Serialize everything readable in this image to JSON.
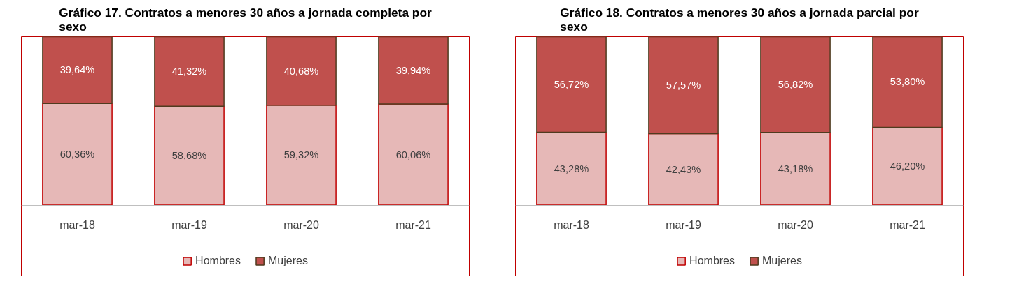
{
  "chart_data": [
    {
      "type": "bar",
      "title": "Gráfico 17. Contratos a menores 30 años a jornada completa por sexo",
      "categories": [
        "mar-18",
        "mar-19",
        "mar-20",
        "mar-21"
      ],
      "stacked": true,
      "legend": "bottom",
      "grid": false,
      "series": [
        {
          "name": "Hombres",
          "color": "#e6b8b7",
          "values": [
            60.36,
            58.68,
            59.32,
            60.06
          ],
          "value_labels": [
            "60,36%",
            "58,68%",
            "59,32%",
            "60,06%"
          ]
        },
        {
          "name": "Mujeres",
          "color": "#c0504d",
          "values": [
            39.64,
            41.32,
            40.68,
            39.94
          ],
          "value_labels": [
            "39,64%",
            "41,32%",
            "40,68%",
            "39,94%"
          ]
        }
      ]
    },
    {
      "type": "bar",
      "title": "Gráfico 18. Contratos a menores 30 años a jornada parcial por sexo",
      "categories": [
        "mar-18",
        "mar-19",
        "mar-20",
        "mar-21"
      ],
      "stacked": true,
      "legend": "bottom",
      "grid": false,
      "series": [
        {
          "name": "Hombres",
          "color": "#e6b8b7",
          "values": [
            43.28,
            42.43,
            43.18,
            46.2
          ],
          "value_labels": [
            "43,28%",
            "42,43%",
            "43,18%",
            "46,20%"
          ]
        },
        {
          "name": "Mujeres",
          "color": "#c0504d",
          "values": [
            56.72,
            57.57,
            56.82,
            53.8
          ],
          "value_labels": [
            "56,72%",
            "57,57%",
            "56,82%",
            "53,80%"
          ]
        }
      ]
    }
  ]
}
